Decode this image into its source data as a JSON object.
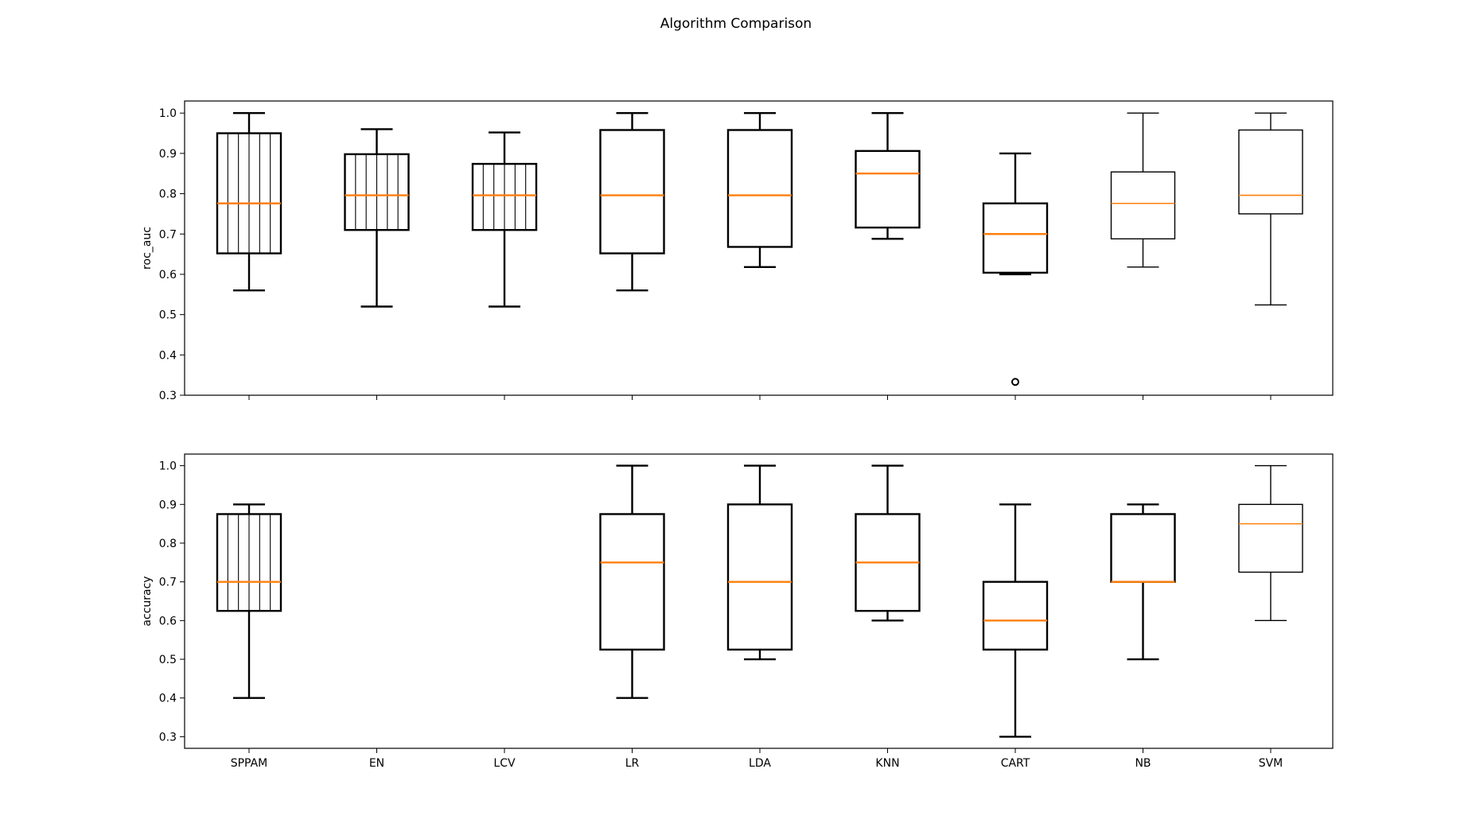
{
  "figure": {
    "title": "Algorithm Comparison"
  },
  "chart_data": [
    {
      "type": "box",
      "ylabel": "roc_auc",
      "xlabel": "",
      "ylim": [
        0.3,
        1.03
      ],
      "yticks": [
        "0.3",
        "0.4",
        "0.5",
        "0.6",
        "0.7",
        "0.8",
        "0.9",
        "1.0"
      ],
      "show_xtick_labels": false,
      "categories": [
        "SPPAM",
        "EN",
        "LCV",
        "LR",
        "LDA",
        "KNN",
        "CART",
        "NB",
        "SVM"
      ],
      "boxes": [
        {
          "name": "SPPAM",
          "whislo": 0.56,
          "q1": 0.652,
          "med": 0.776,
          "q3": 0.95,
          "whishi": 1.0,
          "fliers": [],
          "hatch": true,
          "bold": true
        },
        {
          "name": "EN",
          "whislo": 0.52,
          "q1": 0.71,
          "med": 0.796,
          "q3": 0.898,
          "whishi": 0.96,
          "fliers": [],
          "hatch": true,
          "bold": true
        },
        {
          "name": "LCV",
          "whislo": 0.52,
          "q1": 0.71,
          "med": 0.796,
          "q3": 0.874,
          "whishi": 0.952,
          "fliers": [],
          "hatch": true,
          "bold": true
        },
        {
          "name": "LR",
          "whislo": 0.56,
          "q1": 0.652,
          "med": 0.796,
          "q3": 0.958,
          "whishi": 1.0,
          "fliers": [],
          "hatch": false,
          "bold": true
        },
        {
          "name": "LDA",
          "whislo": 0.618,
          "q1": 0.668,
          "med": 0.796,
          "q3": 0.958,
          "whishi": 1.0,
          "fliers": [],
          "hatch": false,
          "bold": true
        },
        {
          "name": "KNN",
          "whislo": 0.688,
          "q1": 0.716,
          "med": 0.85,
          "q3": 0.906,
          "whishi": 1.0,
          "fliers": [],
          "hatch": false,
          "bold": true
        },
        {
          "name": "CART",
          "whislo": 0.6,
          "q1": 0.604,
          "med": 0.7,
          "q3": 0.776,
          "whishi": 0.9,
          "fliers": [
            0.333
          ],
          "hatch": false,
          "bold": true
        },
        {
          "name": "NB",
          "whislo": 0.618,
          "q1": 0.688,
          "med": 0.776,
          "q3": 0.854,
          "whishi": 1.0,
          "fliers": [],
          "hatch": false,
          "bold": false
        },
        {
          "name": "SVM",
          "whislo": 0.524,
          "q1": 0.75,
          "med": 0.796,
          "q3": 0.958,
          "whishi": 1.0,
          "fliers": [],
          "hatch": false,
          "bold": false
        }
      ]
    },
    {
      "type": "box",
      "ylabel": "accuracy",
      "xlabel": "",
      "ylim": [
        0.27,
        1.03
      ],
      "yticks": [
        "0.3",
        "0.4",
        "0.5",
        "0.6",
        "0.7",
        "0.8",
        "0.9",
        "1.0"
      ],
      "show_xtick_labels": true,
      "categories": [
        "SPPAM",
        "EN",
        "LCV",
        "LR",
        "LDA",
        "KNN",
        "CART",
        "NB",
        "SVM"
      ],
      "boxes": [
        {
          "name": "SPPAM",
          "whislo": 0.4,
          "q1": 0.625,
          "med": 0.7,
          "q3": 0.875,
          "whishi": 0.9,
          "fliers": [],
          "hatch": true,
          "bold": true
        },
        null,
        null,
        {
          "name": "LR",
          "whislo": 0.4,
          "q1": 0.525,
          "med": 0.75,
          "q3": 0.875,
          "whishi": 1.0,
          "fliers": [],
          "hatch": false,
          "bold": true
        },
        {
          "name": "LDA",
          "whislo": 0.5,
          "q1": 0.525,
          "med": 0.7,
          "q3": 0.9,
          "whishi": 1.0,
          "fliers": [],
          "hatch": false,
          "bold": true
        },
        {
          "name": "KNN",
          "whislo": 0.6,
          "q1": 0.625,
          "med": 0.75,
          "q3": 0.875,
          "whishi": 1.0,
          "fliers": [],
          "hatch": false,
          "bold": true
        },
        {
          "name": "CART",
          "whislo": 0.3,
          "q1": 0.525,
          "med": 0.6,
          "q3": 0.7,
          "whishi": 0.9,
          "fliers": [],
          "hatch": false,
          "bold": true
        },
        {
          "name": "NB",
          "whislo": 0.5,
          "q1": 0.7,
          "med": 0.7,
          "q3": 0.875,
          "whishi": 0.9,
          "fliers": [],
          "hatch": false,
          "bold": true
        },
        {
          "name": "SVM",
          "whislo": 0.6,
          "q1": 0.725,
          "med": 0.85,
          "q3": 0.9,
          "whishi": 1.0,
          "fliers": [],
          "hatch": false,
          "bold": false
        }
      ]
    }
  ],
  "colors": {
    "median": "#ff7f0e",
    "box": "#000000",
    "background": "#ffffff"
  }
}
